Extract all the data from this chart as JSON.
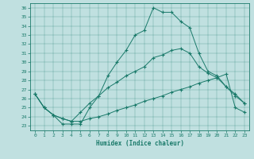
{
  "xlabel": "Humidex (Indice chaleur)",
  "background_color": "#c0e0e0",
  "line_color": "#1a7a6a",
  "xlim": [
    -0.5,
    23.5
  ],
  "ylim": [
    22.5,
    36.5
  ],
  "xticks": [
    0,
    1,
    2,
    3,
    4,
    5,
    6,
    7,
    8,
    9,
    10,
    11,
    12,
    13,
    14,
    15,
    16,
    17,
    18,
    19,
    20,
    21,
    22,
    23
  ],
  "yticks": [
    23,
    24,
    25,
    26,
    27,
    28,
    29,
    30,
    31,
    32,
    33,
    34,
    35,
    36
  ],
  "line1_x": [
    0,
    1,
    2,
    3,
    4,
    5,
    6,
    7,
    8,
    9,
    10,
    11,
    12,
    13,
    14,
    15,
    16,
    17,
    18,
    19,
    20,
    21,
    22,
    23
  ],
  "line1_y": [
    26.5,
    25.0,
    24.2,
    23.2,
    23.2,
    23.2,
    25.0,
    26.3,
    28.5,
    30.0,
    31.3,
    33.0,
    33.5,
    36.0,
    35.5,
    35.5,
    34.5,
    33.8,
    31.0,
    29.0,
    28.5,
    27.3,
    26.5,
    25.5
  ],
  "line2_x": [
    0,
    1,
    2,
    3,
    4,
    5,
    6,
    7,
    8,
    9,
    10,
    11,
    12,
    13,
    14,
    15,
    16,
    17,
    18,
    19,
    20,
    21,
    22,
    23
  ],
  "line2_y": [
    26.5,
    25.0,
    24.2,
    23.8,
    23.5,
    24.5,
    25.5,
    26.3,
    27.2,
    27.8,
    28.5,
    29.0,
    29.5,
    30.5,
    30.8,
    31.3,
    31.5,
    31.0,
    29.5,
    28.8,
    28.3,
    27.3,
    26.3,
    25.5
  ],
  "line3_x": [
    0,
    1,
    2,
    3,
    4,
    5,
    6,
    7,
    8,
    9,
    10,
    11,
    12,
    13,
    14,
    15,
    16,
    17,
    18,
    19,
    20,
    21,
    22,
    23
  ],
  "line3_y": [
    26.5,
    25.0,
    24.2,
    23.8,
    23.5,
    23.5,
    23.8,
    24.0,
    24.3,
    24.7,
    25.0,
    25.3,
    25.7,
    26.0,
    26.3,
    26.7,
    27.0,
    27.3,
    27.7,
    28.0,
    28.3,
    28.7,
    25.0,
    24.5
  ]
}
